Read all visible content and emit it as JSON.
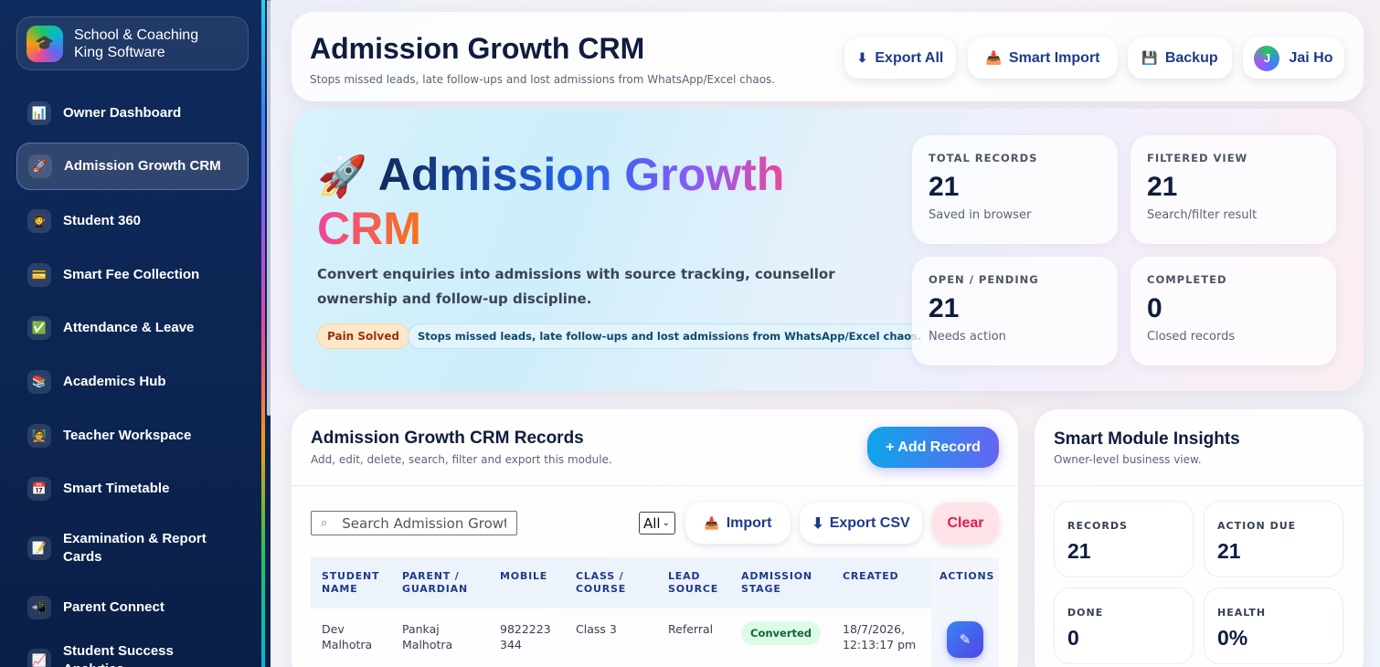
{
  "sidebar": {
    "brand": "School & Coaching King Software",
    "brand_icon": "graduation-cap-icon",
    "items": [
      {
        "label": "Owner Dashboard",
        "icon": "📊",
        "active": false
      },
      {
        "label": "Admission Growth CRM",
        "icon": "🚀",
        "active": true
      },
      {
        "label": "Student 360",
        "icon": "🧑‍🎓",
        "active": false
      },
      {
        "label": "Smart Fee Collection",
        "icon": "💳",
        "active": false
      },
      {
        "label": "Attendance & Leave",
        "icon": "✅",
        "active": false
      },
      {
        "label": "Academics Hub",
        "icon": "📚",
        "active": false
      },
      {
        "label": "Teacher Workspace",
        "icon": "🧑‍🏫",
        "active": false
      },
      {
        "label": "Smart Timetable",
        "icon": "📅",
        "active": false
      },
      {
        "label": "Examination & Report Cards",
        "icon": "📝",
        "active": false
      },
      {
        "label": "Parent Connect",
        "icon": "📲",
        "active": false
      },
      {
        "label": "Student Success Analytics",
        "icon": "📈",
        "active": false
      }
    ]
  },
  "header": {
    "title": "Admission Growth CRM",
    "subtitle": "Stops missed leads, late follow-ups and lost admissions from WhatsApp/Excel chaos.",
    "export_all": "Export All",
    "smart_import": "Smart Import",
    "backup": "Backup",
    "user_initial": "J",
    "user_name": "Jai Ho"
  },
  "hero": {
    "title": "Admission Growth CRM",
    "description": "Convert enquiries into admissions with source tracking, counsellor ownership and follow-up discipline.",
    "pain_label": "Pain Solved",
    "pain_text": "Stops missed leads, late follow-ups and lost admissions from WhatsApp/Excel chaos.",
    "stats": [
      {
        "label": "TOTAL RECORDS",
        "value": "21",
        "note": "Saved in browser"
      },
      {
        "label": "FILTERED VIEW",
        "value": "21",
        "note": "Search/filter result"
      },
      {
        "label": "OPEN / PENDING",
        "value": "21",
        "note": "Needs action"
      },
      {
        "label": "COMPLETED",
        "value": "0",
        "note": "Closed records"
      }
    ]
  },
  "records": {
    "title": "Admission Growth CRM Records",
    "subtitle": "Add, edit, delete, search, filter and export this module.",
    "add_button": "+ Add Record",
    "search_placeholder": "Search Admission Growth",
    "filter_value": "All",
    "import_button": "Import",
    "export_csv_button": "Export CSV",
    "clear_button": "Clear",
    "columns": [
      "STUDENT NAME",
      "PARENT / GUARDIAN",
      "MOBILE",
      "CLASS / COURSE",
      "LEAD SOURCE",
      "ADMISSION STAGE",
      "CREATED",
      "ACTIONS"
    ],
    "rows": [
      {
        "student": "Dev Malhotra",
        "parent": "Pankaj Malhotra",
        "mobile": "9822223344",
        "class": "Class 3",
        "source": "Referral",
        "stage": "Converted",
        "created": "18/7/2026, 12:13:17 pm"
      }
    ]
  },
  "insights": {
    "title": "Smart Module Insights",
    "subtitle": "Owner-level business view.",
    "cards": [
      {
        "label": "RECORDS",
        "value": "21"
      },
      {
        "label": "ACTION DUE",
        "value": "21"
      },
      {
        "label": "DONE",
        "value": "0"
      },
      {
        "label": "HEALTH",
        "value": "0%"
      }
    ]
  }
}
